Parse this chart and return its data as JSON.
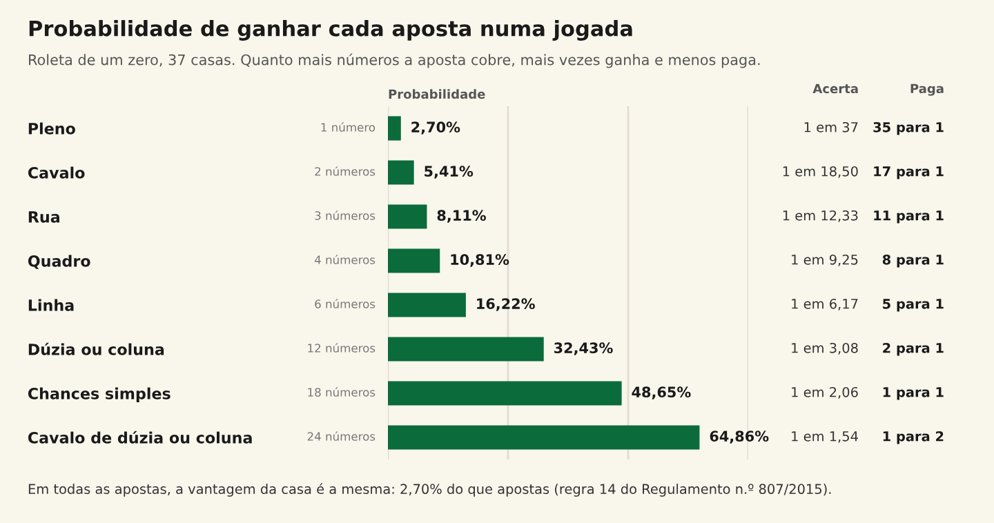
{
  "chart_data": {
    "type": "bar",
    "orientation": "horizontal",
    "title": "Probabilidade de ganhar cada aposta numa jogada",
    "subtitle": "Roleta de um zero, 37 casas. Quanto mais números a aposta cobre, mais vezes ganha e menos paga.",
    "xlabel": "Probabilidade",
    "categories": [
      "Pleno",
      "Cavalo",
      "Rua",
      "Quadro",
      "Linha",
      "Dúzia ou coluna",
      "Chances simples",
      "Cavalo de dúzia ou coluna"
    ],
    "values": [
      2.7,
      5.41,
      8.11,
      10.81,
      16.22,
      32.43,
      48.65,
      64.86
    ],
    "value_labels": [
      "2,70%",
      "5,41%",
      "8,11%",
      "10,81%",
      "16,22%",
      "32,43%",
      "48,65%",
      "64,86%"
    ],
    "color": "#0b6b3a",
    "xlim": [
      0,
      75
    ],
    "xticks": [
      {
        "value": 0,
        "label": null
      },
      {
        "value": 25,
        "label": null
      },
      {
        "value": 50,
        "label": null
      },
      {
        "value": 75,
        "label": null
      }
    ],
    "grid": "x",
    "tick_labels": "y",
    "legend": false,
    "annotations": [
      "Acerta",
      "Paga",
      "1 número",
      "1 em 37",
      "35 para 1",
      "2 números",
      "1 em 18,50",
      "17 para 1",
      "3 números",
      "1 em 12,33",
      "11 para 1",
      "4 números",
      "1 em 9,25",
      "8 para 1",
      "6 números",
      "1 em 6,17",
      "5 para 1",
      "12 números",
      "1 em 3,08",
      "2 para 1",
      "18 números",
      "1 em 2,06",
      "1 para 1",
      "24 números",
      "1 em 1,54",
      "1 para 2",
      "Em todas as apostas, a vantagem da casa é a mesma: 2,70% do que apostas (regra 14 do Regulamento n.º 807/2015)."
    ]
  }
}
